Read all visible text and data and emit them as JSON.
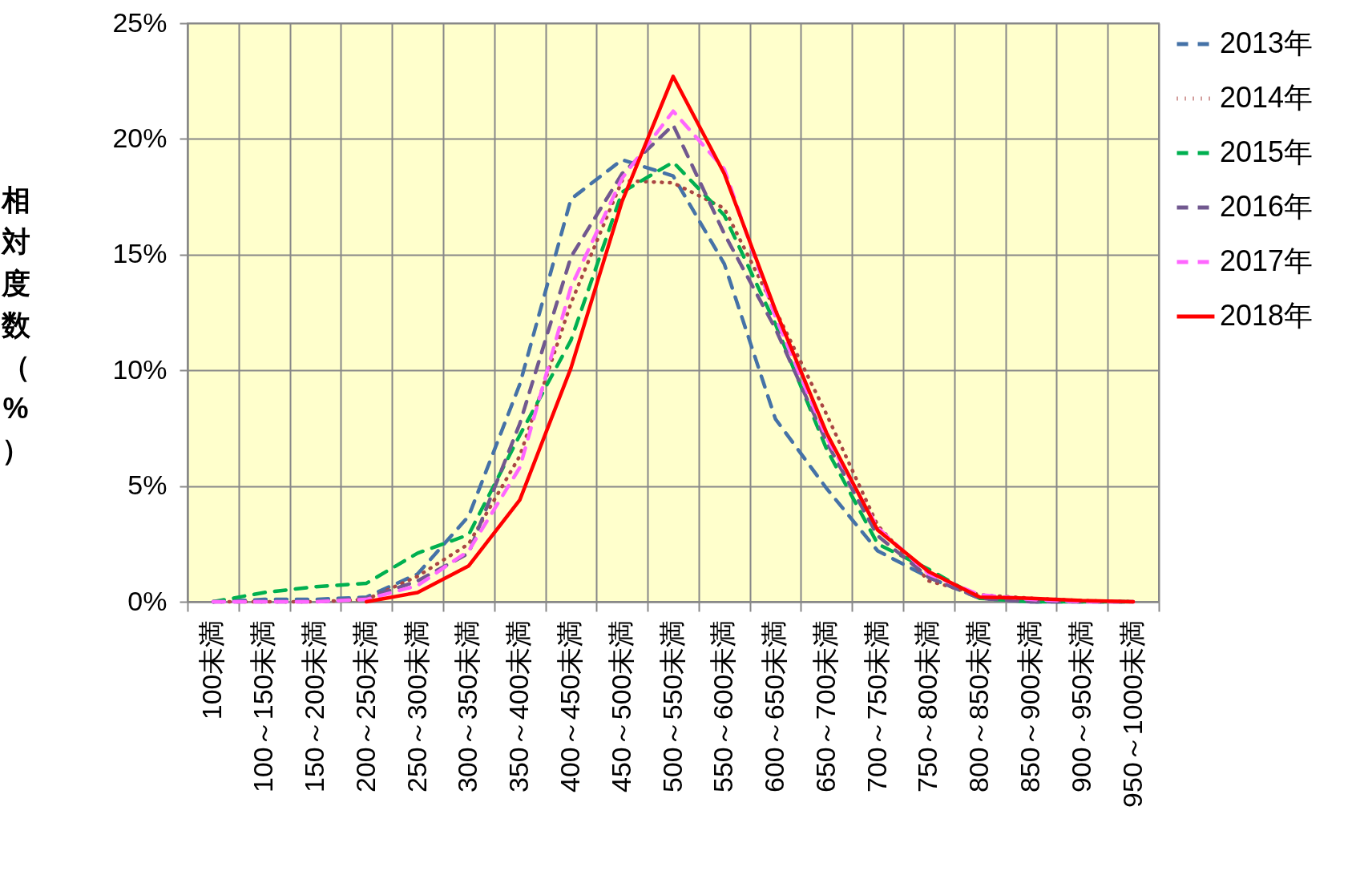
{
  "chart_data": {
    "type": "line",
    "ylabel": "相対度数（%）",
    "categories": [
      "100未満",
      "100～150未満",
      "150～200未満",
      "200～250未満",
      "250～300未満",
      "300～350未満",
      "350～400未満",
      "400～450未満",
      "450～500未満",
      "500～550未満",
      "550～600未満",
      "600～650未満",
      "650～700未満",
      "700～750未満",
      "750～800未満",
      "800～850未満",
      "850～900未満",
      "900～950未満",
      "950～1000未満"
    ],
    "series": [
      {
        "name": "2013年",
        "color": "#4572a7",
        "line_style": "dashed",
        "values": [
          0,
          0.1,
          0.1,
          0.2,
          1.2,
          3.7,
          9.4,
          17.4,
          19.1,
          18.4,
          14.6,
          7.9,
          4.9,
          2.2,
          1.05,
          0.15,
          0,
          0,
          0
        ]
      },
      {
        "name": "2014年",
        "color": "#aa4643",
        "line_style": "dotted",
        "values": [
          0,
          0,
          0,
          0.1,
          1.1,
          2.5,
          6.3,
          12.9,
          18.2,
          18.1,
          17.0,
          12.6,
          8.1,
          3.3,
          0.9,
          0.3,
          0.15,
          0.05,
          0
        ]
      },
      {
        "name": "2015年",
        "color": "#00b050",
        "line_style": "dashed",
        "values": [
          0,
          0.4,
          0.65,
          0.8,
          2.1,
          2.9,
          7.2,
          11.3,
          17.7,
          19.0,
          16.7,
          12.0,
          6.6,
          2.5,
          1.4,
          0.15,
          0,
          0,
          0
        ]
      },
      {
        "name": "2016年",
        "color": "#71588f",
        "line_style": "dashed",
        "values": [
          0,
          0,
          0,
          0.15,
          0.9,
          2.1,
          7.7,
          14.9,
          18.5,
          20.6,
          15.9,
          11.8,
          6.9,
          2.85,
          1.05,
          0.15,
          0,
          0,
          0
        ]
      },
      {
        "name": "2017年",
        "color": "#ff66ff",
        "line_style": "dashed",
        "values": [
          0,
          0,
          0,
          0.1,
          0.7,
          2.2,
          5.8,
          13.6,
          18.3,
          21.2,
          18.7,
          12.3,
          7.1,
          3.2,
          1.2,
          0.3,
          0.1,
          0,
          0
        ]
      },
      {
        "name": "2018年",
        "color": "#ff0000",
        "line_style": "solid",
        "values": [
          null,
          null,
          null,
          0,
          0.4,
          1.55,
          4.4,
          10.1,
          17.3,
          22.7,
          18.5,
          12.6,
          7.3,
          3.1,
          1.3,
          0.2,
          0.15,
          0.05,
          0
        ]
      }
    ],
    "ylim": [
      0,
      25
    ],
    "yticks": [
      {
        "value": 0,
        "label": "0%"
      },
      {
        "value": 5,
        "label": "5%"
      },
      {
        "value": 10,
        "label": "10%"
      },
      {
        "value": 15,
        "label": "15%"
      },
      {
        "value": 20,
        "label": "20%"
      },
      {
        "value": 25,
        "label": "25%"
      }
    ],
    "grid": true,
    "legend": "right",
    "marker": "none"
  }
}
